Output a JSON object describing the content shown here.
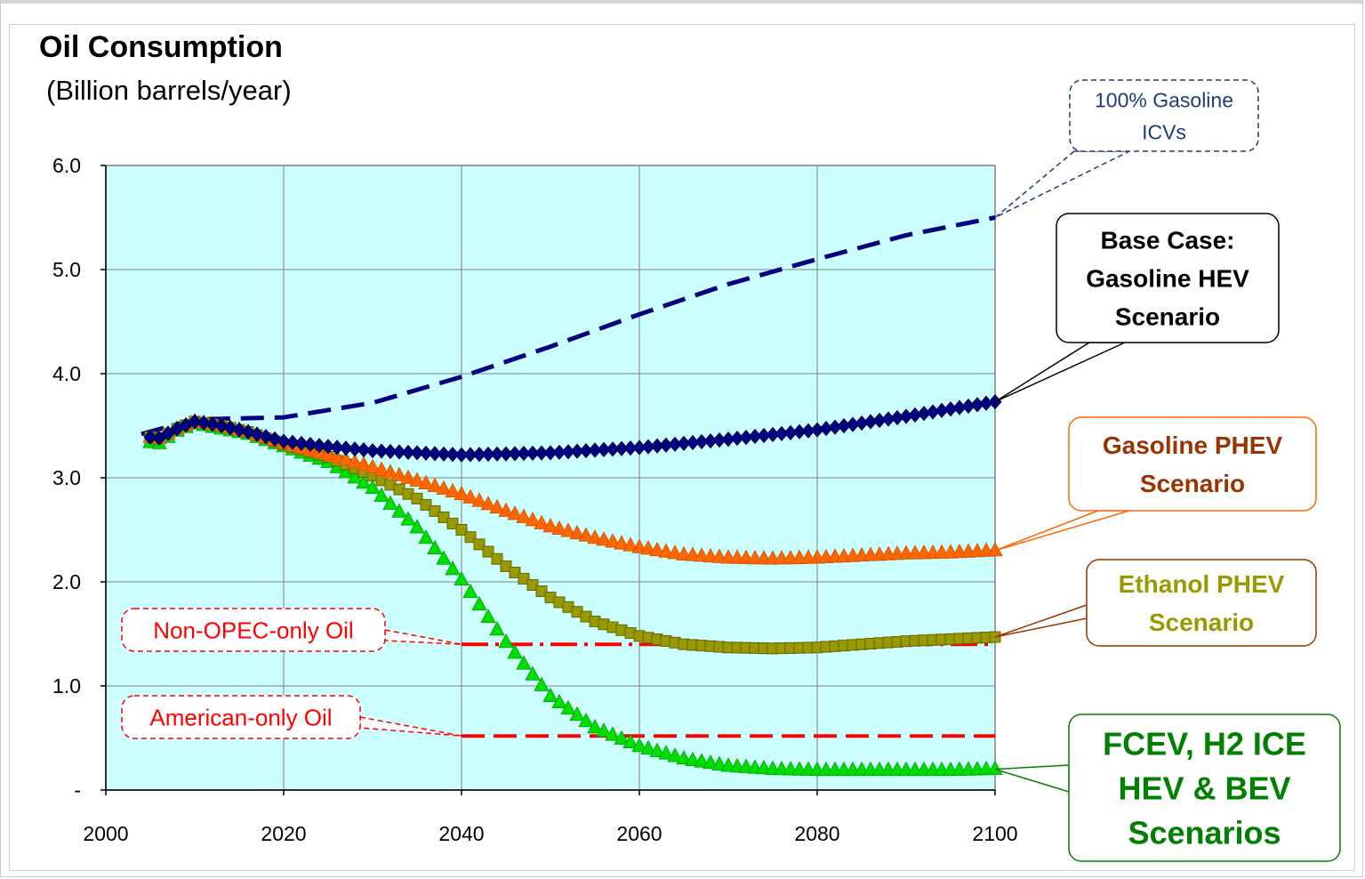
{
  "chart_data": {
    "type": "line",
    "title": "Oil Consumption",
    "subtitle": "(Billion barrels/year)",
    "xlabel": "",
    "ylabel": "",
    "xlim": [
      2000,
      2100
    ],
    "ylim": [
      0,
      6
    ],
    "x_ticks": [
      "2000",
      "2020",
      "2040",
      "2060",
      "2080",
      "2100"
    ],
    "y_ticks": [
      "-",
      "1.0",
      "2.0",
      "3.0",
      "4.0",
      "5.0",
      "6.0"
    ],
    "grid": true,
    "plot_background": "#ccffff",
    "series": [
      {
        "name": "100% Gasoline ICVs",
        "style": "dashed",
        "color": "#000080",
        "x": [
          2004,
          2010,
          2015,
          2020,
          2030,
          2040,
          2050,
          2060,
          2070,
          2080,
          2090,
          2100
        ],
        "y": [
          3.42,
          3.56,
          3.57,
          3.58,
          3.72,
          3.97,
          4.26,
          4.57,
          4.86,
          5.1,
          5.33,
          5.5
        ]
      },
      {
        "name": "Base Case: Gasoline HEV Scenario",
        "marker": "diamond",
        "color": "#000080",
        "x": [
          2004,
          2006,
          2008,
          2010,
          2013,
          2016,
          2020,
          2025,
          2030,
          2035,
          2040,
          2050,
          2060,
          2070,
          2080,
          2090,
          2100
        ],
        "y": [
          3.4,
          3.38,
          3.47,
          3.54,
          3.5,
          3.44,
          3.35,
          3.3,
          3.26,
          3.24,
          3.22,
          3.24,
          3.29,
          3.37,
          3.46,
          3.59,
          3.73
        ]
      },
      {
        "name": "Gasoline PHEV Scenario",
        "marker": "triangle",
        "color": "#ff6600",
        "x": [
          2004,
          2006,
          2008,
          2010,
          2013,
          2016,
          2020,
          2025,
          2030,
          2035,
          2040,
          2045,
          2050,
          2055,
          2060,
          2065,
          2070,
          2075,
          2080,
          2085,
          2090,
          2095,
          2100
        ],
        "y": [
          3.4,
          3.38,
          3.47,
          3.54,
          3.5,
          3.44,
          3.33,
          3.22,
          3.1,
          2.97,
          2.84,
          2.68,
          2.53,
          2.42,
          2.33,
          2.26,
          2.23,
          2.22,
          2.23,
          2.25,
          2.27,
          2.28,
          2.3
        ]
      },
      {
        "name": "Ethanol PHEV Scenario",
        "marker": "square",
        "color": "#999900",
        "x": [
          2004,
          2006,
          2008,
          2010,
          2013,
          2016,
          2020,
          2025,
          2030,
          2035,
          2040,
          2045,
          2050,
          2055,
          2060,
          2065,
          2070,
          2075,
          2080,
          2085,
          2090,
          2095,
          2100
        ],
        "y": [
          3.4,
          3.38,
          3.47,
          3.54,
          3.5,
          3.44,
          3.32,
          3.2,
          3.02,
          2.8,
          2.5,
          2.15,
          1.85,
          1.62,
          1.48,
          1.4,
          1.37,
          1.36,
          1.37,
          1.4,
          1.43,
          1.45,
          1.47
        ]
      },
      {
        "name": "FCEV, H2 ICE HEV & BEV Scenarios",
        "marker": "triangle",
        "color": "#00dd00",
        "x": [
          2004,
          2006,
          2008,
          2010,
          2013,
          2016,
          2020,
          2025,
          2030,
          2035,
          2040,
          2045,
          2050,
          2055,
          2060,
          2065,
          2070,
          2075,
          2080,
          2085,
          2090,
          2095,
          2100
        ],
        "y": [
          3.35,
          3.33,
          3.45,
          3.52,
          3.47,
          3.42,
          3.3,
          3.15,
          2.9,
          2.52,
          2.02,
          1.42,
          0.9,
          0.6,
          0.42,
          0.3,
          0.23,
          0.2,
          0.19,
          0.19,
          0.19,
          0.19,
          0.2
        ]
      },
      {
        "name": "Non-OPEC-only Oil",
        "style": "dash-dot",
        "color": "#ff0000",
        "x": [
          2040,
          2100
        ],
        "y": [
          1.4,
          1.4
        ]
      },
      {
        "name": "American-only Oil",
        "style": "dashed",
        "color": "#ff0000",
        "x": [
          2040,
          2100
        ],
        "y": [
          0.52,
          0.52
        ]
      }
    ],
    "annotations": [
      {
        "lines": [
          "100% Gasoline",
          "ICVs"
        ],
        "series": 0,
        "color": "#1f3a7a",
        "border": "#1f3a7a",
        "bold": false
      },
      {
        "lines": [
          "Base Case:",
          "Gasoline HEV",
          "Scenario"
        ],
        "series": 1,
        "color": "#000000",
        "border": "#000000",
        "bold": true
      },
      {
        "lines": [
          "Gasoline PHEV",
          "Scenario"
        ],
        "series": 2,
        "color": "#993300",
        "border": "#ff6600",
        "bold": true
      },
      {
        "lines": [
          "Ethanol PHEV",
          "Scenario"
        ],
        "series": 3,
        "color": "#999900",
        "border": "#993300",
        "bold": true
      },
      {
        "lines": [
          "FCEV, H2 ICE",
          "HEV  & BEV",
          "Scenarios"
        ],
        "series": 4,
        "color": "#008000",
        "border": "#008000",
        "bold": true
      },
      {
        "lines": [
          "Non-OPEC-only Oil"
        ],
        "series": 5,
        "color": "#ff0000",
        "border": "#ff0000",
        "bold": false
      },
      {
        "lines": [
          "American-only Oil"
        ],
        "series": 6,
        "color": "#ff0000",
        "border": "#ff0000",
        "bold": false
      }
    ]
  }
}
